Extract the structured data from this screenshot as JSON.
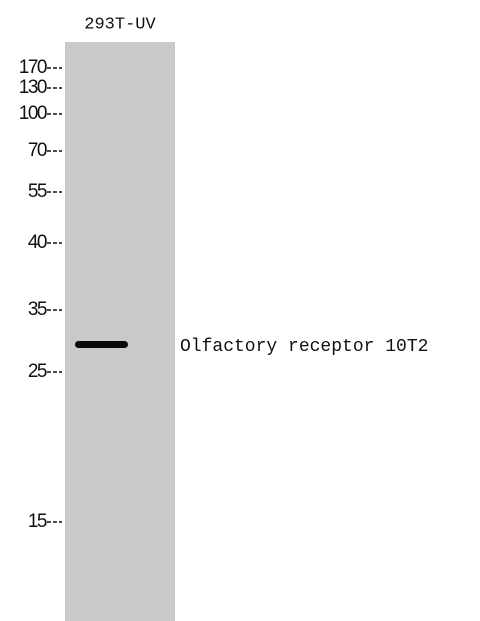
{
  "lane_label": "293T-UV",
  "markers": [
    "170",
    "130",
    "100",
    "70",
    "55",
    "40",
    "35",
    "25",
    "15"
  ],
  "band_label": "Olfactory receptor 10T2"
}
